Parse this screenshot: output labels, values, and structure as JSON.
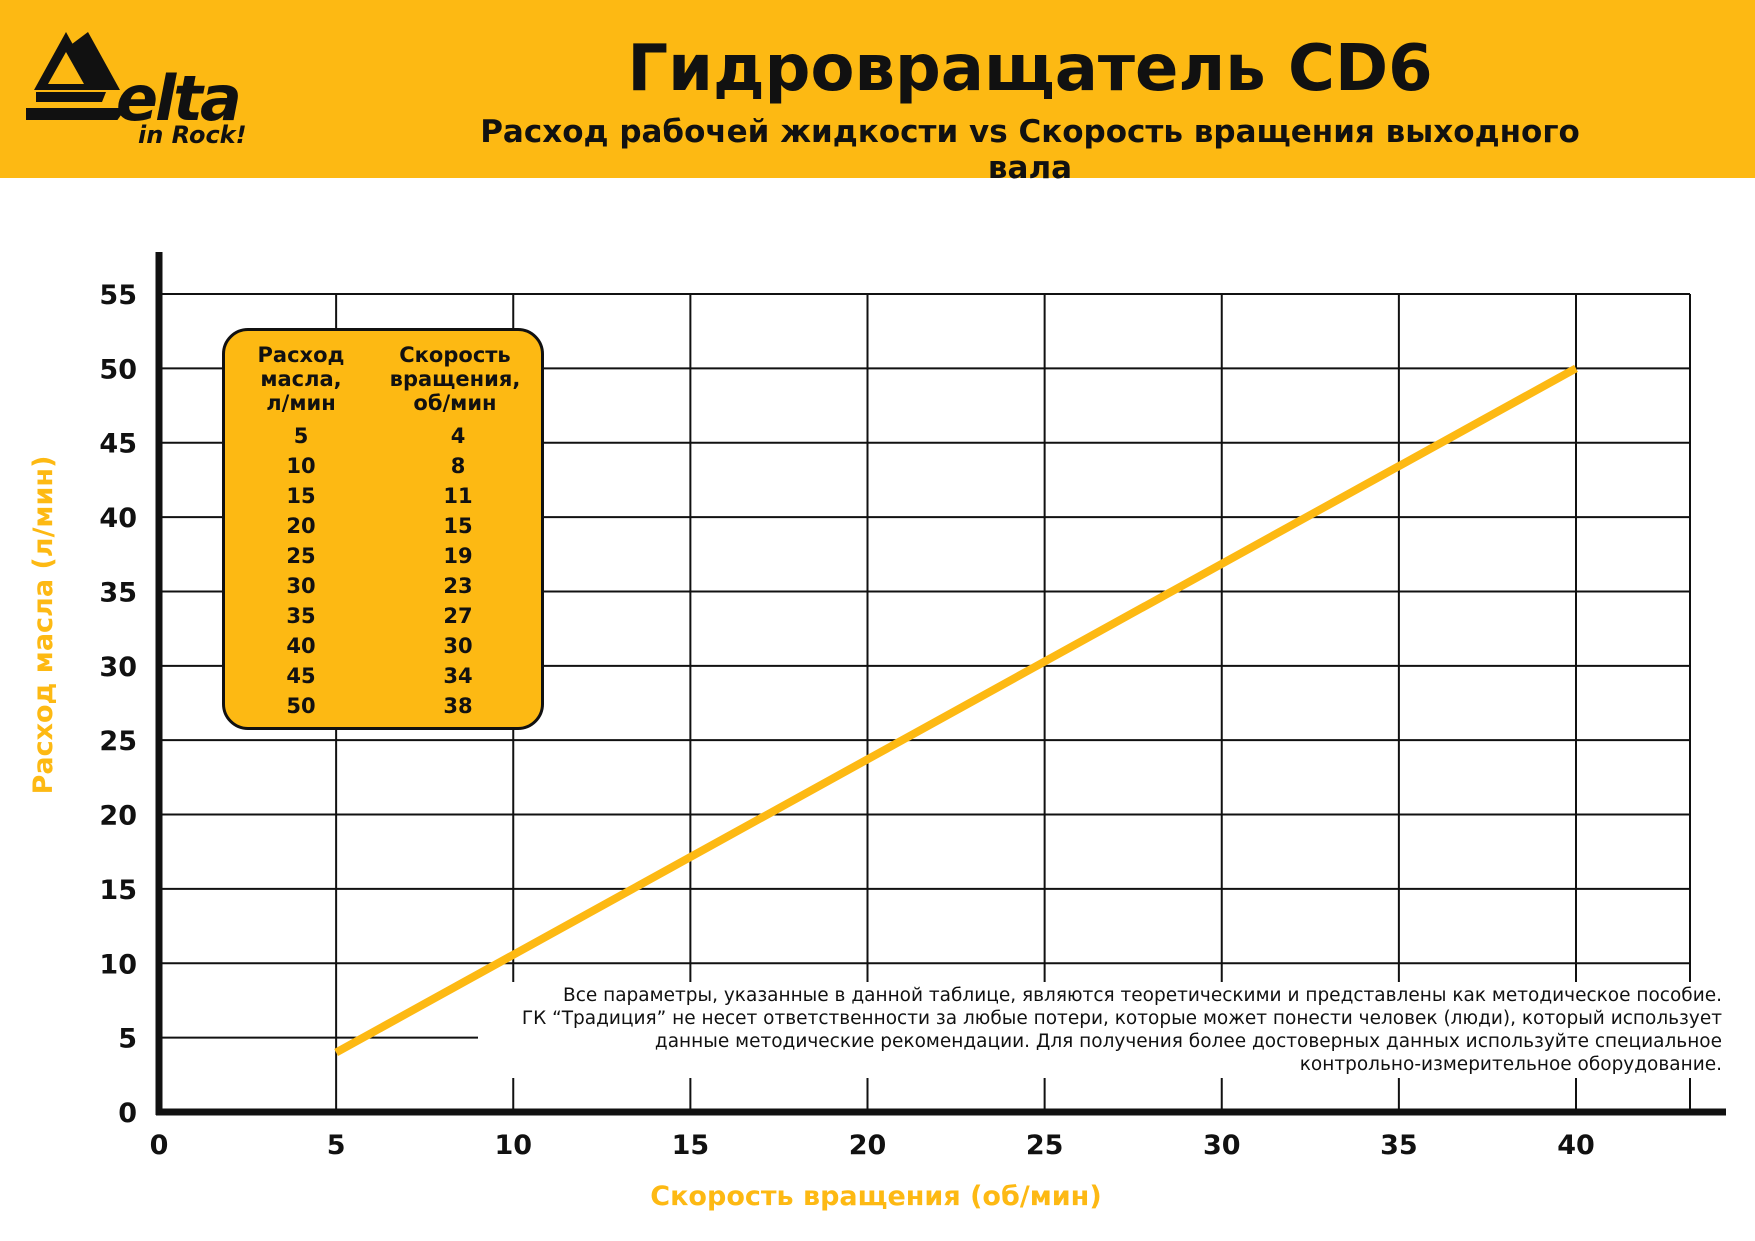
{
  "header": {
    "logo_word": "elta",
    "logo_tagline": "in Rock!",
    "title": "Гидровращатель CD6",
    "subtitle": "Расход рабочей жидкости vs Скорость вращения выходного вала"
  },
  "colors": {
    "accent": "#FDB913",
    "line": "#FDB913",
    "grid": "#111111",
    "text": "#111111"
  },
  "chart_data": {
    "type": "line",
    "xlabel": "Скорость вращения (об/мин)",
    "ylabel": "Расход масла (л/мин)",
    "xlim": [
      0,
      40
    ],
    "ylim": [
      0,
      55
    ],
    "x_ticks": [
      0,
      5,
      10,
      15,
      20,
      25,
      30,
      35,
      40
    ],
    "y_ticks": [
      0,
      5,
      10,
      15,
      20,
      25,
      30,
      35,
      40,
      45,
      50,
      55
    ],
    "grid": true,
    "series": [
      {
        "x": [
          4,
          8,
          11,
          15,
          19,
          23,
          27,
          30,
          34,
          38
        ],
        "y": [
          5,
          10,
          15,
          20,
          25,
          30,
          35,
          40,
          45,
          50
        ]
      }
    ],
    "line_endpoints": {
      "x": [
        5,
        40
      ],
      "y": [
        4,
        50
      ]
    }
  },
  "legend_table": {
    "col1_header": "Расход\nмасла,\nл/мин",
    "col2_header": "Скорость\nвращения,\nоб/мин",
    "rows": [
      {
        "flow": "5",
        "speed": "4"
      },
      {
        "flow": "10",
        "speed": "8"
      },
      {
        "flow": "15",
        "speed": "11"
      },
      {
        "flow": "20",
        "speed": "15"
      },
      {
        "flow": "25",
        "speed": "19"
      },
      {
        "flow": "30",
        "speed": "23"
      },
      {
        "flow": "35",
        "speed": "27"
      },
      {
        "flow": "40",
        "speed": "30"
      },
      {
        "flow": "45",
        "speed": "34"
      },
      {
        "flow": "50",
        "speed": "38"
      }
    ]
  },
  "disclaimer": {
    "line1": "Все параметры, указанные в данной таблице, являются теоретическими и представлены как методическое пособие.",
    "line2": "ГК “Традиция” не несет ответственности за любые потери, которые может понести человек (люди), который использует",
    "line3": "данные методические рекомендации.  Для получения более достоверных данных используйте специальное",
    "line4": "контрольно-измерительное оборудование."
  }
}
